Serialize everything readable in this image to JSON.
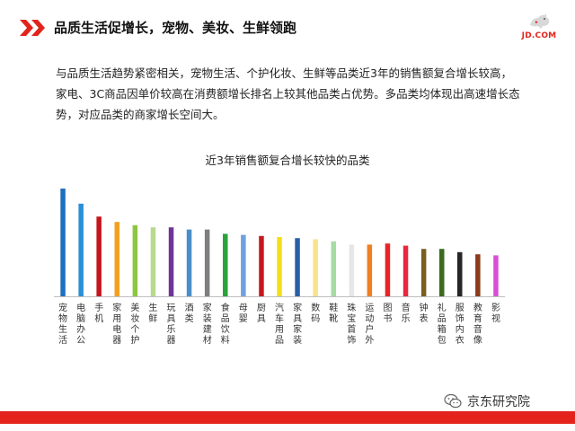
{
  "header": {
    "title": "品质生活促增长，宠物、美妆、生鲜领跑",
    "logo_text": "JD.COM",
    "accent_color": "#e1251b"
  },
  "description": "与品质生活趋势紧密相关，宠物生活、个护化妆、生鲜等品类近3年的销售额复合增长较高，家电、3C商品因单价较高在消费额增长排名上较其他品类占优势。多品类均体现出高速增长态势，对应品类的商家增长空间大。",
  "chart_data": {
    "type": "bar",
    "title": "近3年销售额复合增长较快的品类",
    "xlabel": "",
    "ylabel": "",
    "grid": false,
    "legend": "none",
    "categories": [
      "宠物生活",
      "电脑办公",
      "手机",
      "家用电器",
      "美妆个护",
      "生鲜",
      "玩具乐器",
      "酒类",
      "家装建材",
      "食品饮料",
      "母婴",
      "厨具",
      "汽车用品",
      "家具家装",
      "数码",
      "鞋靴",
      "珠宝首饰",
      "运动户外",
      "图书",
      "音乐",
      "钟表",
      "礼品箱包",
      "服饰内衣",
      "教育音像",
      "影视"
    ],
    "values": [
      100,
      86,
      74,
      69,
      66,
      64,
      64,
      62,
      62,
      58,
      57,
      56,
      55,
      54,
      53,
      51,
      48,
      48,
      49,
      47,
      44,
      44,
      41,
      39,
      38
    ],
    "colors": [
      "#1f6fbf",
      "#2a8fd6",
      "#c4161c",
      "#f2a01f",
      "#8ec641",
      "#b8d98f",
      "#6d3597",
      "#4a8fc9",
      "#7f7f7f",
      "#2aa33a",
      "#6fa0e0",
      "#c8161d",
      "#f4df18",
      "#2a5ea8",
      "#f7e38a",
      "#a6dca2",
      "#e6e6e6",
      "#f07f22",
      "#e72428",
      "#e8283d",
      "#7a5e1f",
      "#3a6b1f",
      "#262626",
      "#8b3a1a",
      "#d94fd3"
    ],
    "ylim": [
      0,
      100
    ]
  },
  "footer": {
    "brand": "京东研究院",
    "bar_color": "#e3231c",
    "icon": "wechat-icon"
  }
}
